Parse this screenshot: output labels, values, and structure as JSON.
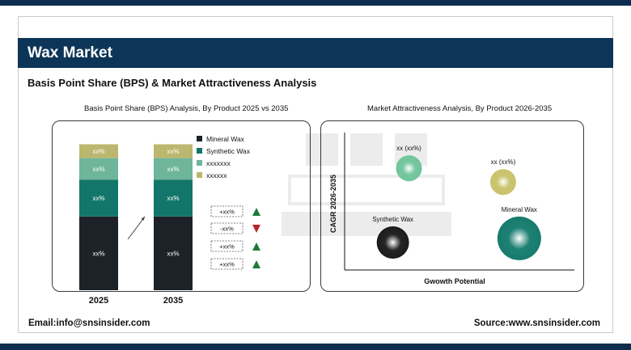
{
  "header": {
    "title": "Wax Market",
    "subtitle": "Basis Point Share (BPS) & Market Attractiveness Analysis"
  },
  "footer": {
    "email": "Email:info@snsinsider.com",
    "source": "Source:www.snsinsider.com"
  },
  "colors": {
    "navy": "#0d3557",
    "mineral_wax": "#1c2228",
    "synthetic_wax": "#13766a",
    "series_3": "#6fb59b",
    "series_4": "#bcb76e",
    "up": "#1e7a3a",
    "down": "#b5252a"
  },
  "chart_data": [
    {
      "type": "bar",
      "stacked": true,
      "title": "Basis Point Share (BPS) Analysis, By Product 2025 vs 2035",
      "categories": [
        "2025",
        "2035"
      ],
      "series": [
        {
          "name": "Mineral Wax",
          "values": [
            48,
            48
          ],
          "labels": [
            "xx%",
            "xx%"
          ]
        },
        {
          "name": "Synthetic Wax",
          "values": [
            24,
            24
          ],
          "labels": [
            "xx%",
            "xx%"
          ]
        },
        {
          "name": "xxxxxxx",
          "values": [
            14,
            14
          ],
          "labels": [
            "xx%",
            "xx%"
          ]
        },
        {
          "name": "xxxxxx",
          "values": [
            9,
            9
          ],
          "labels": [
            "xx%",
            "xx%"
          ]
        }
      ],
      "legend_position": "right",
      "changes": [
        {
          "label": "+xx%",
          "direction": "up"
        },
        {
          "label": "-xx%",
          "direction": "down"
        },
        {
          "label": "+xx%",
          "direction": "up"
        },
        {
          "label": "+xx%",
          "direction": "up"
        }
      ]
    },
    {
      "type": "scatter",
      "title": "Market Attractiveness Analysis, By Product 2026-2035",
      "xlabel": "Gwowth Potential",
      "ylabel": "CAGR 2026-2035",
      "xlim": [
        0,
        10
      ],
      "ylim": [
        0,
        10
      ],
      "points": [
        {
          "label": "xx (xx%)",
          "x": 2.8,
          "y": 7.4,
          "size": 16,
          "color": "#6fc49a"
        },
        {
          "label": "xx (xx%)",
          "x": 6.9,
          "y": 6.4,
          "size": 16,
          "color": "#c8c26a"
        },
        {
          "label": "Synthetic Wax",
          "x": 2.1,
          "y": 2.0,
          "size": 20,
          "color": "#1a1a1a"
        },
        {
          "label": "Mineral Wax",
          "x": 7.6,
          "y": 2.3,
          "size": 27,
          "color": "#137a6c"
        }
      ]
    }
  ]
}
